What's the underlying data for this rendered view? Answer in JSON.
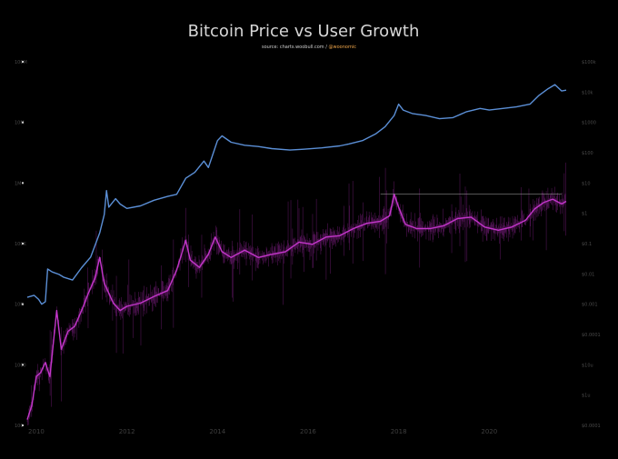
{
  "chart_data": {
    "type": "line",
    "title": "Bitcoin Price vs User Growth",
    "subtitle_source": "source: charts.woobull.com / ",
    "subtitle_handle": "@woonomic",
    "x_ticks": [
      "2010",
      "2012",
      "2014",
      "2016",
      "2018",
      "2020"
    ],
    "left_ticks": [
      "100M",
      "10M",
      "1M",
      "100K",
      "10K",
      "1000",
      "100"
    ],
    "right_ticks": [
      "$100k",
      "$10k",
      "$1000",
      "$100",
      "$10",
      "$1",
      "$0.1",
      "$0.01",
      "$0.001",
      "$0.0001",
      "$10u",
      "$1u",
      "$0.0001"
    ],
    "xlim": [
      2009.8,
      2021.8
    ],
    "grid": false,
    "colors": {
      "background": "#000000",
      "users": "#5b8fd6",
      "price": "#c236c9",
      "price_faint": "#6a1a6e",
      "reference": "#8a8a8a"
    },
    "series": [
      {
        "axis": "left",
        "points": [
          [
            2009.8,
            13000
          ],
          [
            2009.95,
            14000
          ],
          [
            2010.05,
            12000
          ],
          [
            2010.12,
            10000
          ],
          [
            2010.2,
            11000
          ],
          [
            2010.25,
            38000
          ],
          [
            2010.35,
            34000
          ],
          [
            2010.5,
            31000
          ],
          [
            2010.6,
            28000
          ],
          [
            2010.8,
            25000
          ],
          [
            2011.0,
            40000
          ],
          [
            2011.2,
            60000
          ],
          [
            2011.4,
            150000
          ],
          [
            2011.5,
            300000
          ],
          [
            2011.55,
            750000
          ],
          [
            2011.6,
            400000
          ],
          [
            2011.75,
            550000
          ],
          [
            2011.85,
            450000
          ],
          [
            2012.0,
            380000
          ],
          [
            2012.3,
            420000
          ],
          [
            2012.6,
            520000
          ],
          [
            2012.9,
            600000
          ],
          [
            2013.1,
            650000
          ],
          [
            2013.3,
            1200000
          ],
          [
            2013.5,
            1500000
          ],
          [
            2013.7,
            2300000
          ],
          [
            2013.8,
            1800000
          ],
          [
            2013.9,
            3000000
          ],
          [
            2014.0,
            5000000
          ],
          [
            2014.1,
            6000000
          ],
          [
            2014.3,
            4700000
          ],
          [
            2014.6,
            4200000
          ],
          [
            2014.9,
            4000000
          ],
          [
            2015.2,
            3700000
          ],
          [
            2015.6,
            3500000
          ],
          [
            2015.9,
            3600000
          ],
          [
            2016.3,
            3800000
          ],
          [
            2016.7,
            4100000
          ],
          [
            2016.9,
            4400000
          ],
          [
            2017.2,
            5000000
          ],
          [
            2017.5,
            6500000
          ],
          [
            2017.7,
            8500000
          ],
          [
            2017.9,
            13000000
          ],
          [
            2018.0,
            20000000
          ],
          [
            2018.1,
            16000000
          ],
          [
            2018.3,
            14000000
          ],
          [
            2018.6,
            13000000
          ],
          [
            2018.9,
            11500000
          ],
          [
            2019.2,
            12000000
          ],
          [
            2019.5,
            15000000
          ],
          [
            2019.8,
            17000000
          ],
          [
            2020.0,
            16000000
          ],
          [
            2020.3,
            17000000
          ],
          [
            2020.6,
            18000000
          ],
          [
            2020.9,
            20000000
          ],
          [
            2021.1,
            28000000
          ],
          [
            2021.3,
            36000000
          ],
          [
            2021.45,
            42000000
          ],
          [
            2021.6,
            33000000
          ],
          [
            2021.7,
            34000000
          ]
        ]
      },
      {
        "axis": "right",
        "points": [
          [
            2009.8,
            1.5e-06
          ],
          [
            2009.9,
            4e-06
          ],
          [
            2010.0,
            3e-05
          ],
          [
            2010.1,
            4e-05
          ],
          [
            2010.2,
            8e-05
          ],
          [
            2010.3,
            3e-05
          ],
          [
            2010.45,
            0.003
          ],
          [
            2010.55,
            0.0002
          ],
          [
            2010.7,
            0.0007
          ],
          [
            2010.85,
            0.001
          ],
          [
            2011.0,
            0.003
          ],
          [
            2011.15,
            0.01
          ],
          [
            2011.3,
            0.03
          ],
          [
            2011.4,
            0.12
          ],
          [
            2011.5,
            0.02
          ],
          [
            2011.7,
            0.005
          ],
          [
            2011.85,
            0.003
          ],
          [
            2012.0,
            0.004
          ],
          [
            2012.3,
            0.005
          ],
          [
            2012.6,
            0.008
          ],
          [
            2012.9,
            0.012
          ],
          [
            2013.1,
            0.05
          ],
          [
            2013.3,
            0.4
          ],
          [
            2013.4,
            0.1
          ],
          [
            2013.6,
            0.06
          ],
          [
            2013.8,
            0.15
          ],
          [
            2013.95,
            0.5
          ],
          [
            2014.1,
            0.18
          ],
          [
            2014.3,
            0.12
          ],
          [
            2014.6,
            0.2
          ],
          [
            2014.9,
            0.12
          ],
          [
            2015.2,
            0.15
          ],
          [
            2015.5,
            0.18
          ],
          [
            2015.8,
            0.35
          ],
          [
            2016.1,
            0.3
          ],
          [
            2016.4,
            0.5
          ],
          [
            2016.7,
            0.55
          ],
          [
            2017.0,
            0.9
          ],
          [
            2017.3,
            1.3
          ],
          [
            2017.6,
            1.5
          ],
          [
            2017.8,
            2.2
          ],
          [
            2017.9,
            10
          ],
          [
            2018.0,
            4
          ],
          [
            2018.15,
            1.2
          ],
          [
            2018.4,
            0.9
          ],
          [
            2018.7,
            0.9
          ],
          [
            2019.0,
            1.1
          ],
          [
            2019.3,
            1.8
          ],
          [
            2019.6,
            2
          ],
          [
            2019.9,
            1
          ],
          [
            2020.2,
            0.8
          ],
          [
            2020.5,
            1.0
          ],
          [
            2020.8,
            1.6
          ],
          [
            2021.0,
            3.5
          ],
          [
            2021.2,
            5.5
          ],
          [
            2021.4,
            7
          ],
          [
            2021.6,
            5
          ],
          [
            2021.7,
            6
          ]
        ]
      }
    ],
    "reference_line": {
      "axis": "right",
      "y": 10,
      "x_start": 2017.6,
      "x_end": 2021.6
    }
  }
}
